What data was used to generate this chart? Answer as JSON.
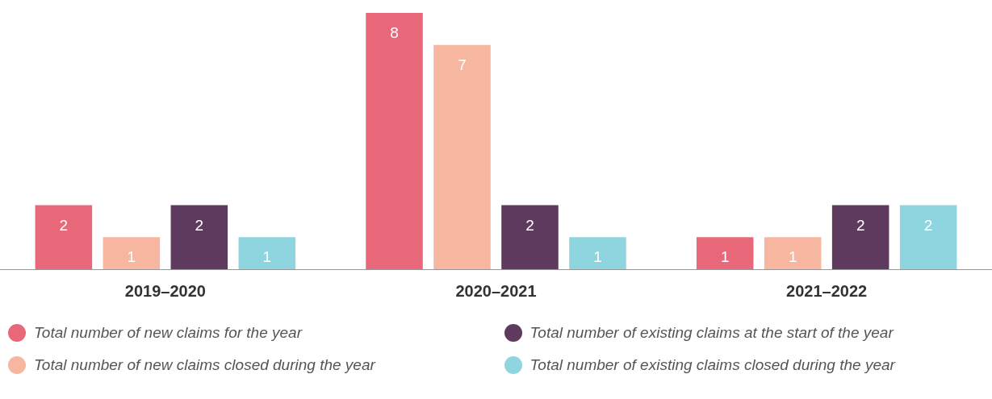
{
  "chart_data": {
    "type": "bar",
    "categories": [
      "2019–2020",
      "2020–2021",
      "2021–2022"
    ],
    "series": [
      {
        "name": "Total number of new claims for the year",
        "color": "#e8687a",
        "values": [
          2,
          8,
          1
        ]
      },
      {
        "name": "Total number of new claims closed during the year",
        "color": "#f7b6a0",
        "values": [
          1,
          7,
          1
        ]
      },
      {
        "name": "Total number of existing claims at the start of the year",
        "color": "#5e3a5e",
        "values": [
          2,
          2,
          2
        ]
      },
      {
        "name": "Total number of existing claims closed during the year",
        "color": "#8fd5e0",
        "values": [
          1,
          1,
          2
        ]
      }
    ],
    "ylim": [
      0,
      8
    ],
    "data_labels": true,
    "grid": false,
    "legend": "bottom"
  }
}
